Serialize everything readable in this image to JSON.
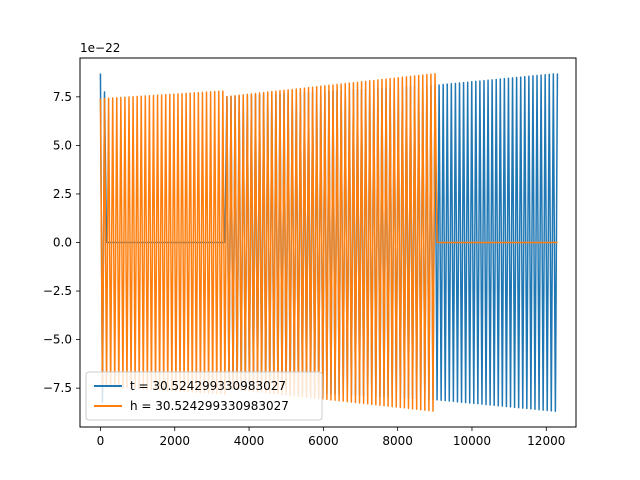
{
  "chart_data": {
    "type": "line",
    "title": "",
    "xlabel": "",
    "ylabel": "",
    "offset_text": "1e−22",
    "xlim": [
      -550,
      12800
    ],
    "ylim": [
      -9.5,
      9.5
    ],
    "x_ticks": [
      0,
      2000,
      4000,
      6000,
      8000,
      10000,
      12000
    ],
    "x_tick_labels": [
      "0",
      "2000",
      "4000",
      "6000",
      "8000",
      "10000",
      "12000"
    ],
    "y_ticks": [
      -7.5,
      -5.0,
      -2.5,
      0.0,
      2.5,
      5.0,
      7.5
    ],
    "y_tick_labels": [
      "−7.5",
      "−5.0",
      "−2.5",
      "0.0",
      "2.5",
      "5.0",
      "7.5"
    ],
    "grid": false,
    "legend_position": "lower-left",
    "series": [
      {
        "name": "t = 30.524299330983027",
        "color": "#1f77b4",
        "oscillation_cycles": 112,
        "segments": [
          {
            "x": [
              0,
              150
            ],
            "amplitude": [
              8.7,
              7.4
            ]
          },
          {
            "x": [
              150,
              3350
            ],
            "amplitude": [
              0,
              0
            ]
          },
          {
            "x": [
              3350,
              9050
            ],
            "amplitude": [
              7.5,
              8.1
            ]
          },
          {
            "x": [
              9050,
              12300
            ],
            "amplitude": [
              8.1,
              8.7
            ]
          }
        ]
      },
      {
        "name": "h = 30.524299330983027",
        "color": "#ff7f0e",
        "oscillation_cycles": 112,
        "segments": [
          {
            "x": [
              0,
              3350
            ],
            "amplitude": [
              7.4,
              7.8
            ]
          },
          {
            "x": [
              3350,
              9050
            ],
            "amplitude": [
              7.5,
              8.7
            ]
          },
          {
            "x": [
              9050,
              12300
            ],
            "amplitude": [
              0,
              0
            ]
          }
        ]
      }
    ]
  }
}
